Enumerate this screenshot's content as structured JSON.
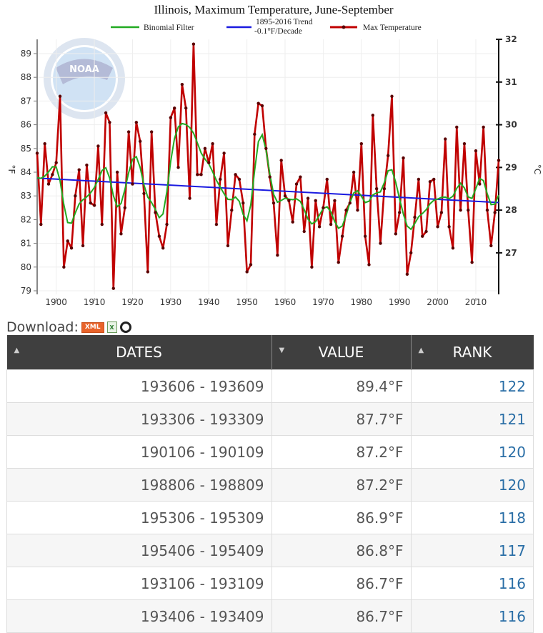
{
  "chart_data": {
    "type": "line",
    "title": "Illinois, Maximum Temperature, June-September",
    "ylabel": "°F",
    "y2label": "°C",
    "ylim": [
      78.85,
      89.6
    ],
    "xlim": [
      1895,
      2016
    ],
    "yticks": [
      79,
      80,
      81,
      82,
      83,
      84,
      85,
      86,
      87,
      88,
      89
    ],
    "y2ticks": [
      27,
      28,
      29,
      30,
      31,
      32
    ],
    "xticks": [
      1900,
      1910,
      1920,
      1930,
      1940,
      1950,
      1960,
      1970,
      1980,
      1990,
      2000,
      2010
    ],
    "grid": true,
    "legend_placement": "top",
    "legend": [
      "Binomial Filter",
      "1895-2016 Trend",
      "-0.1°F/Decade",
      "Max Temperature"
    ],
    "x_start": 1895,
    "series": [
      {
        "name": "Max Temperature",
        "color": "#c00000",
        "values": [
          84.8,
          81.8,
          85.2,
          83.5,
          83.9,
          84.4,
          87.2,
          80.0,
          81.1,
          80.8,
          83.0,
          84.1,
          80.9,
          84.3,
          82.7,
          82.6,
          85.1,
          81.8,
          86.5,
          86.1,
          79.1,
          84.0,
          81.4,
          82.5,
          85.7,
          83.5,
          86.1,
          85.3,
          83.1,
          79.8,
          85.7,
          82.3,
          81.3,
          80.8,
          81.8,
          86.3,
          86.7,
          84.2,
          87.7,
          86.7,
          82.9,
          89.4,
          83.9,
          83.9,
          85.0,
          84.4,
          85.2,
          81.8,
          83.7,
          84.8,
          80.9,
          82.4,
          83.9,
          83.7,
          82.7,
          79.8,
          80.1,
          85.6,
          86.9,
          86.8,
          85.0,
          83.8,
          82.7,
          80.5,
          84.5,
          83.0,
          82.8,
          81.9,
          83.5,
          83.8,
          81.5,
          82.9,
          80.0,
          82.8,
          81.7,
          82.5,
          83.7,
          81.8,
          82.8,
          80.2,
          81.3,
          82.4,
          82.7,
          84.0,
          82.4,
          85.2,
          81.3,
          80.1,
          86.4,
          83.3,
          81.0,
          83.3,
          84.7,
          87.2,
          81.4,
          82.3,
          84.6,
          79.7,
          80.6,
          82.1,
          83.7,
          81.3,
          81.5,
          83.6,
          83.7,
          81.7,
          82.3,
          85.4,
          81.7,
          80.8,
          85.9,
          82.4,
          85.2,
          82.4,
          80.2,
          84.9,
          83.5,
          85.9,
          82.4,
          80.9,
          82.3,
          84.5
        ]
      },
      {
        "name": "Binomial Filter",
        "color": "#22aa22"
      },
      {
        "name": "1895-2016 Trend",
        "color": "#1a1ae0",
        "start_value": 83.75,
        "end_value": 82.72,
        "rate": "-0.1°F/Decade"
      }
    ]
  },
  "download": {
    "label": "Download:",
    "xml_label": "XML",
    "icons": [
      "xml-icon",
      "excel-icon",
      "csv-ring-icon"
    ]
  },
  "table": {
    "headers": [
      "DATES",
      "VALUE",
      "RANK"
    ],
    "sort_icons": [
      "sort-both-icon",
      "sort-desc-icon",
      "sort-both-icon"
    ],
    "rows": [
      {
        "dates": "193606 - 193609",
        "value": "89.4°F",
        "rank": "122"
      },
      {
        "dates": "193306 - 193309",
        "value": "87.7°F",
        "rank": "121"
      },
      {
        "dates": "190106 - 190109",
        "value": "87.2°F",
        "rank": "120"
      },
      {
        "dates": "198806 - 198809",
        "value": "87.2°F",
        "rank": "120"
      },
      {
        "dates": "195306 - 195309",
        "value": "86.9°F",
        "rank": "118"
      },
      {
        "dates": "195406 - 195409",
        "value": "86.8°F",
        "rank": "117"
      },
      {
        "dates": "193106 - 193109",
        "value": "86.7°F",
        "rank": "116"
      },
      {
        "dates": "193406 - 193409",
        "value": "86.7°F",
        "rank": "116"
      }
    ]
  }
}
